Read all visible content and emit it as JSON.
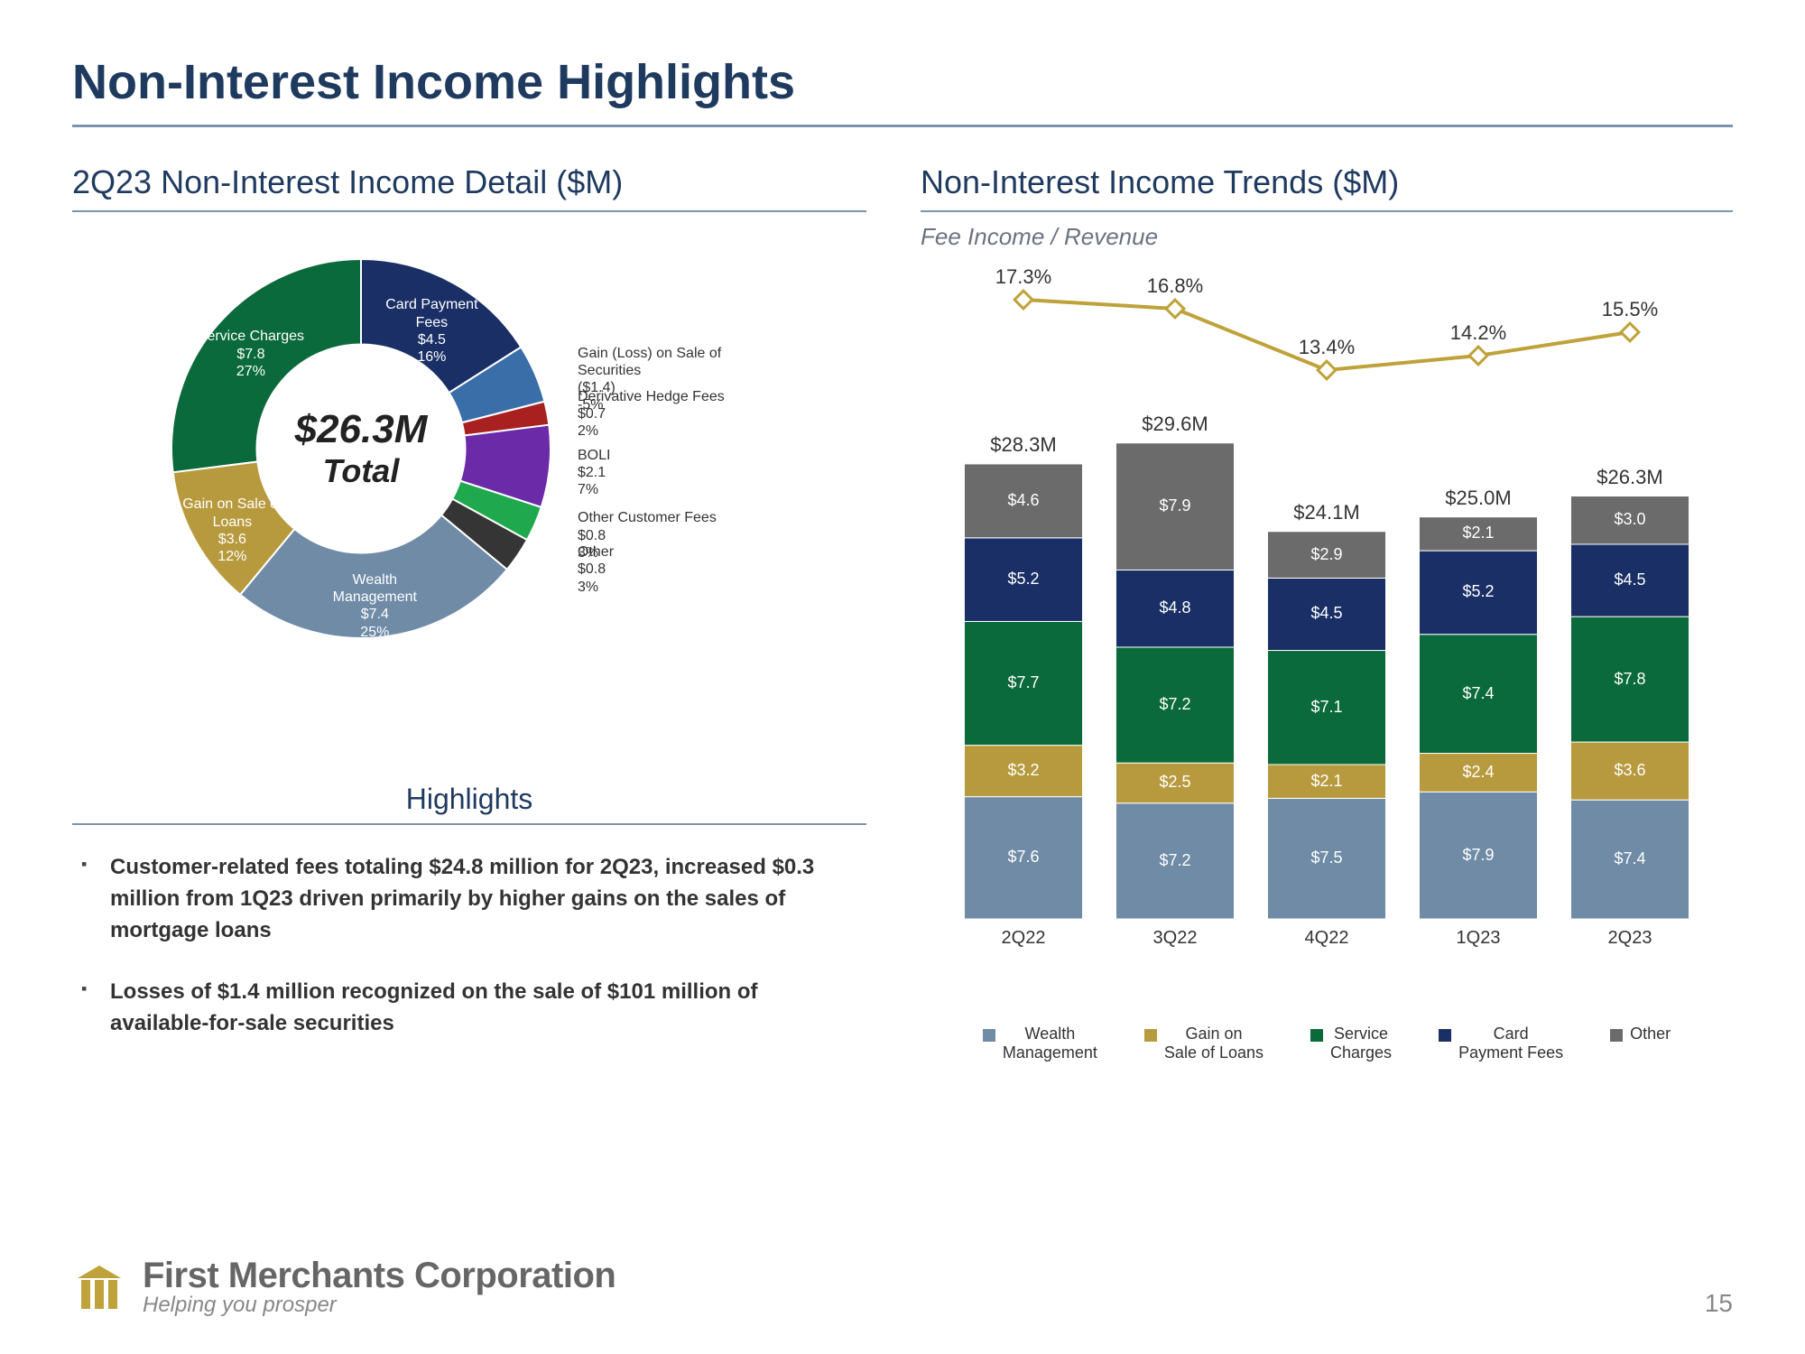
{
  "page": {
    "title": "Non-Interest Income Highlights",
    "number": "15"
  },
  "colors": {
    "navy": "#1f3a5f",
    "rule": "#7a94b0",
    "wealth": "#6f8ba6",
    "gain_on_sale": "#b89a3e",
    "service_charges": "#0b6a3b",
    "card_payment": "#1a2f66",
    "other": "#6b6b6b",
    "gain_loss_sec": "#3a6ea8",
    "derivative": "#a82020",
    "boli": "#6b2aa8",
    "other_dark": "#353535",
    "customer_fees": "#1fa84d",
    "line_gold": "#bfa23a",
    "bg": "#ffffff"
  },
  "donut": {
    "title": "2Q23 Non-Interest Income Detail ($M)",
    "center_value": "$26.3M",
    "center_label": "Total",
    "inner_ratio": 0.55,
    "slices": [
      {
        "key": "service_charges",
        "label": "Service Charges",
        "value": "$7.8",
        "pct": "27%",
        "weight": 27,
        "color": "#0b6a3b"
      },
      {
        "key": "card_payment",
        "label": "Card Payment Fees",
        "value": "$4.5",
        "pct": "16%",
        "weight": 16,
        "color": "#1a2f66"
      },
      {
        "key": "gain_loss_sec",
        "label": "Gain (Loss) on Sale of Securities",
        "value": "($1.4)",
        "pct": "-5%",
        "weight": 5,
        "color": "#3a6ea8"
      },
      {
        "key": "derivative",
        "label": "Derivative Hedge Fees",
        "value": "$0.7",
        "pct": "2%",
        "weight": 2,
        "color": "#a82020"
      },
      {
        "key": "boli",
        "label": "BOLI",
        "value": "$2.1",
        "pct": "7%",
        "weight": 7,
        "color": "#6b2aa8"
      },
      {
        "key": "customer_fees",
        "label": "Other Customer Fees",
        "value": "$0.8",
        "pct": "3%",
        "weight": 3,
        "color": "#1fa84d"
      },
      {
        "key": "other",
        "label": "Other",
        "value": "$0.8",
        "pct": "3%",
        "weight": 3,
        "color": "#353535"
      },
      {
        "key": "wealth",
        "label": "Wealth Management",
        "value": "$7.4",
        "pct": "25%",
        "weight": 25,
        "color": "#6f8ba6"
      },
      {
        "key": "gain_on_sale",
        "label": "Gain on Sale of Loans",
        "value": "$3.6",
        "pct": "12%",
        "weight": 12,
        "color": "#b89a3e"
      }
    ]
  },
  "highlights": {
    "title": "Highlights",
    "items": [
      "Customer-related fees totaling $24.8 million for 2Q23, increased $0.3 million from 1Q23 driven primarily by higher gains on the sales of mortgage loans",
      "Losses of $1.4 million recognized on the sale of $101 million of available-for-sale securities"
    ]
  },
  "trends": {
    "title": "Non-Interest Income Trends ($M)",
    "subtitle": "Fee Income / Revenue",
    "ymax": 32,
    "categories": [
      "2Q22",
      "3Q22",
      "4Q22",
      "1Q23",
      "2Q23"
    ],
    "line_pct": [
      "17.3%",
      "16.8%",
      "13.4%",
      "14.2%",
      "15.5%"
    ],
    "line_y": [
      17.3,
      16.8,
      13.4,
      14.2,
      15.5
    ],
    "totals": [
      "$28.3M",
      "$29.6M",
      "$24.1M",
      "$25.0M",
      "$26.3M"
    ],
    "series": [
      {
        "key": "wealth",
        "label": "Wealth Management",
        "color": "#6f8ba6"
      },
      {
        "key": "gain_on_sale",
        "label": "Gain on Sale of Loans",
        "color": "#b89a3e"
      },
      {
        "key": "service",
        "label": "Service Charges",
        "color": "#0b6a3b"
      },
      {
        "key": "card",
        "label": "Card Payment Fees",
        "color": "#1a2f66"
      },
      {
        "key": "other",
        "label": "Other",
        "color": "#6b6b6b"
      }
    ],
    "stacks": [
      {
        "wealth": 7.6,
        "gain_on_sale": 3.2,
        "service": 7.7,
        "card": 5.2,
        "other": 4.6
      },
      {
        "wealth": 7.2,
        "gain_on_sale": 2.5,
        "service": 7.2,
        "card": 4.8,
        "other": 7.9
      },
      {
        "wealth": 7.5,
        "gain_on_sale": 2.1,
        "service": 7.1,
        "card": 4.5,
        "other": 2.9
      },
      {
        "wealth": 7.9,
        "gain_on_sale": 2.4,
        "service": 7.4,
        "card": 5.2,
        "other": 2.1
      },
      {
        "wealth": 7.4,
        "gain_on_sale": 3.6,
        "service": 7.8,
        "card": 4.5,
        "other": 3.0
      }
    ],
    "legend_labels": {
      "wealth": "Wealth\nManagement",
      "gain_on_sale": "Gain on\nSale of Loans",
      "service": "Service\nCharges",
      "card": "Card\nPayment Fees",
      "other": "Other"
    }
  },
  "footer": {
    "brand_name": "First Merchants Corporation",
    "brand_tag": "Helping you prosper"
  }
}
